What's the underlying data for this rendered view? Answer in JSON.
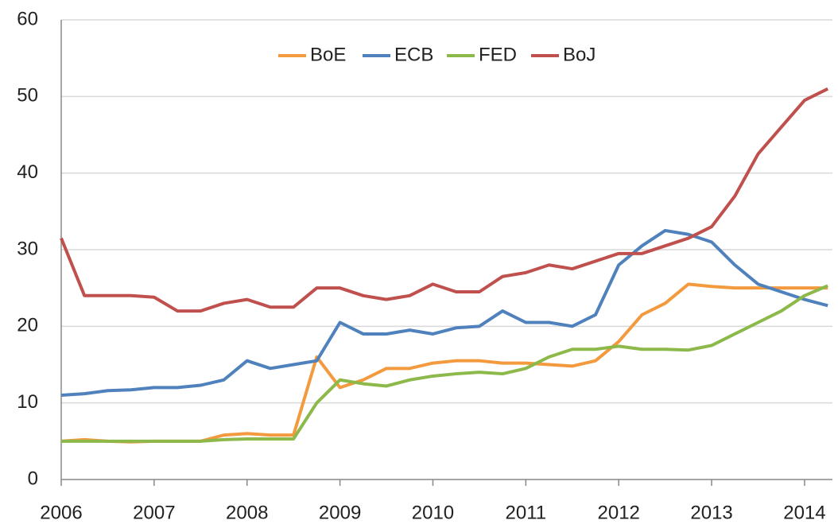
{
  "chart_data": {
    "type": "line",
    "x": [
      2006,
      2006.25,
      2006.5,
      2006.75,
      2007,
      2007.25,
      2007.5,
      2007.75,
      2008,
      2008.25,
      2008.5,
      2008.75,
      2009,
      2009.25,
      2009.5,
      2009.75,
      2010,
      2010.25,
      2010.5,
      2010.75,
      2011,
      2011.25,
      2011.5,
      2011.75,
      2012,
      2012.25,
      2012.5,
      2012.75,
      2013,
      2013.25,
      2013.5,
      2013.75,
      2014,
      2014.25
    ],
    "series": [
      {
        "name": "BoE",
        "color": "#f39a3e",
        "values": [
          5,
          5.2,
          5,
          4.9,
          5,
          5,
          5,
          5.8,
          6,
          5.8,
          5.8,
          16,
          12,
          13,
          14.5,
          14.5,
          15.2,
          15.5,
          15.5,
          15.2,
          15.2,
          15,
          14.8,
          15.5,
          18,
          21.5,
          23,
          25.5,
          25.2,
          25,
          25,
          25,
          25,
          25
        ]
      },
      {
        "name": "ECB",
        "color": "#4f81bd",
        "values": [
          11,
          11.2,
          11.6,
          11.7,
          12,
          12,
          12.3,
          13,
          15.5,
          14.5,
          15,
          15.5,
          20.5,
          19,
          19,
          19.5,
          19,
          19.8,
          20,
          22,
          20.5,
          20.5,
          20,
          21.5,
          28,
          30.5,
          32.5,
          32,
          31,
          28,
          25.5,
          24.5,
          23.5,
          22.7
        ]
      },
      {
        "name": "FED",
        "color": "#8db84a",
        "values": [
          5,
          5,
          5,
          5,
          5,
          5,
          5,
          5.2,
          5.3,
          5.3,
          5.3,
          10,
          13,
          12.5,
          12.2,
          13,
          13.5,
          13.8,
          14,
          13.8,
          14.5,
          16,
          17,
          17,
          17.4,
          17,
          17,
          16.9,
          17.5,
          19,
          20.5,
          22,
          24,
          25.3
        ]
      },
      {
        "name": "BoJ",
        "color": "#c0504d",
        "values": [
          31.5,
          24,
          24,
          24,
          23.8,
          22,
          22,
          23,
          23.5,
          22.5,
          22.5,
          25,
          25,
          24,
          23.5,
          24,
          25.5,
          24.5,
          24.5,
          26.5,
          27,
          28,
          27.5,
          28.5,
          29.5,
          29.5,
          30.5,
          31.5,
          33,
          37,
          42.5,
          46,
          49.5,
          51
        ]
      }
    ],
    "xlim": [
      2006,
      2014.3
    ],
    "xticks": [
      2006,
      2007,
      2008,
      2009,
      2010,
      2011,
      2012,
      2013,
      2014
    ],
    "ylim": [
      0,
      60
    ],
    "yticks": [
      0,
      10,
      20,
      30,
      40,
      50,
      60
    ],
    "grid": true,
    "legend": "top"
  }
}
